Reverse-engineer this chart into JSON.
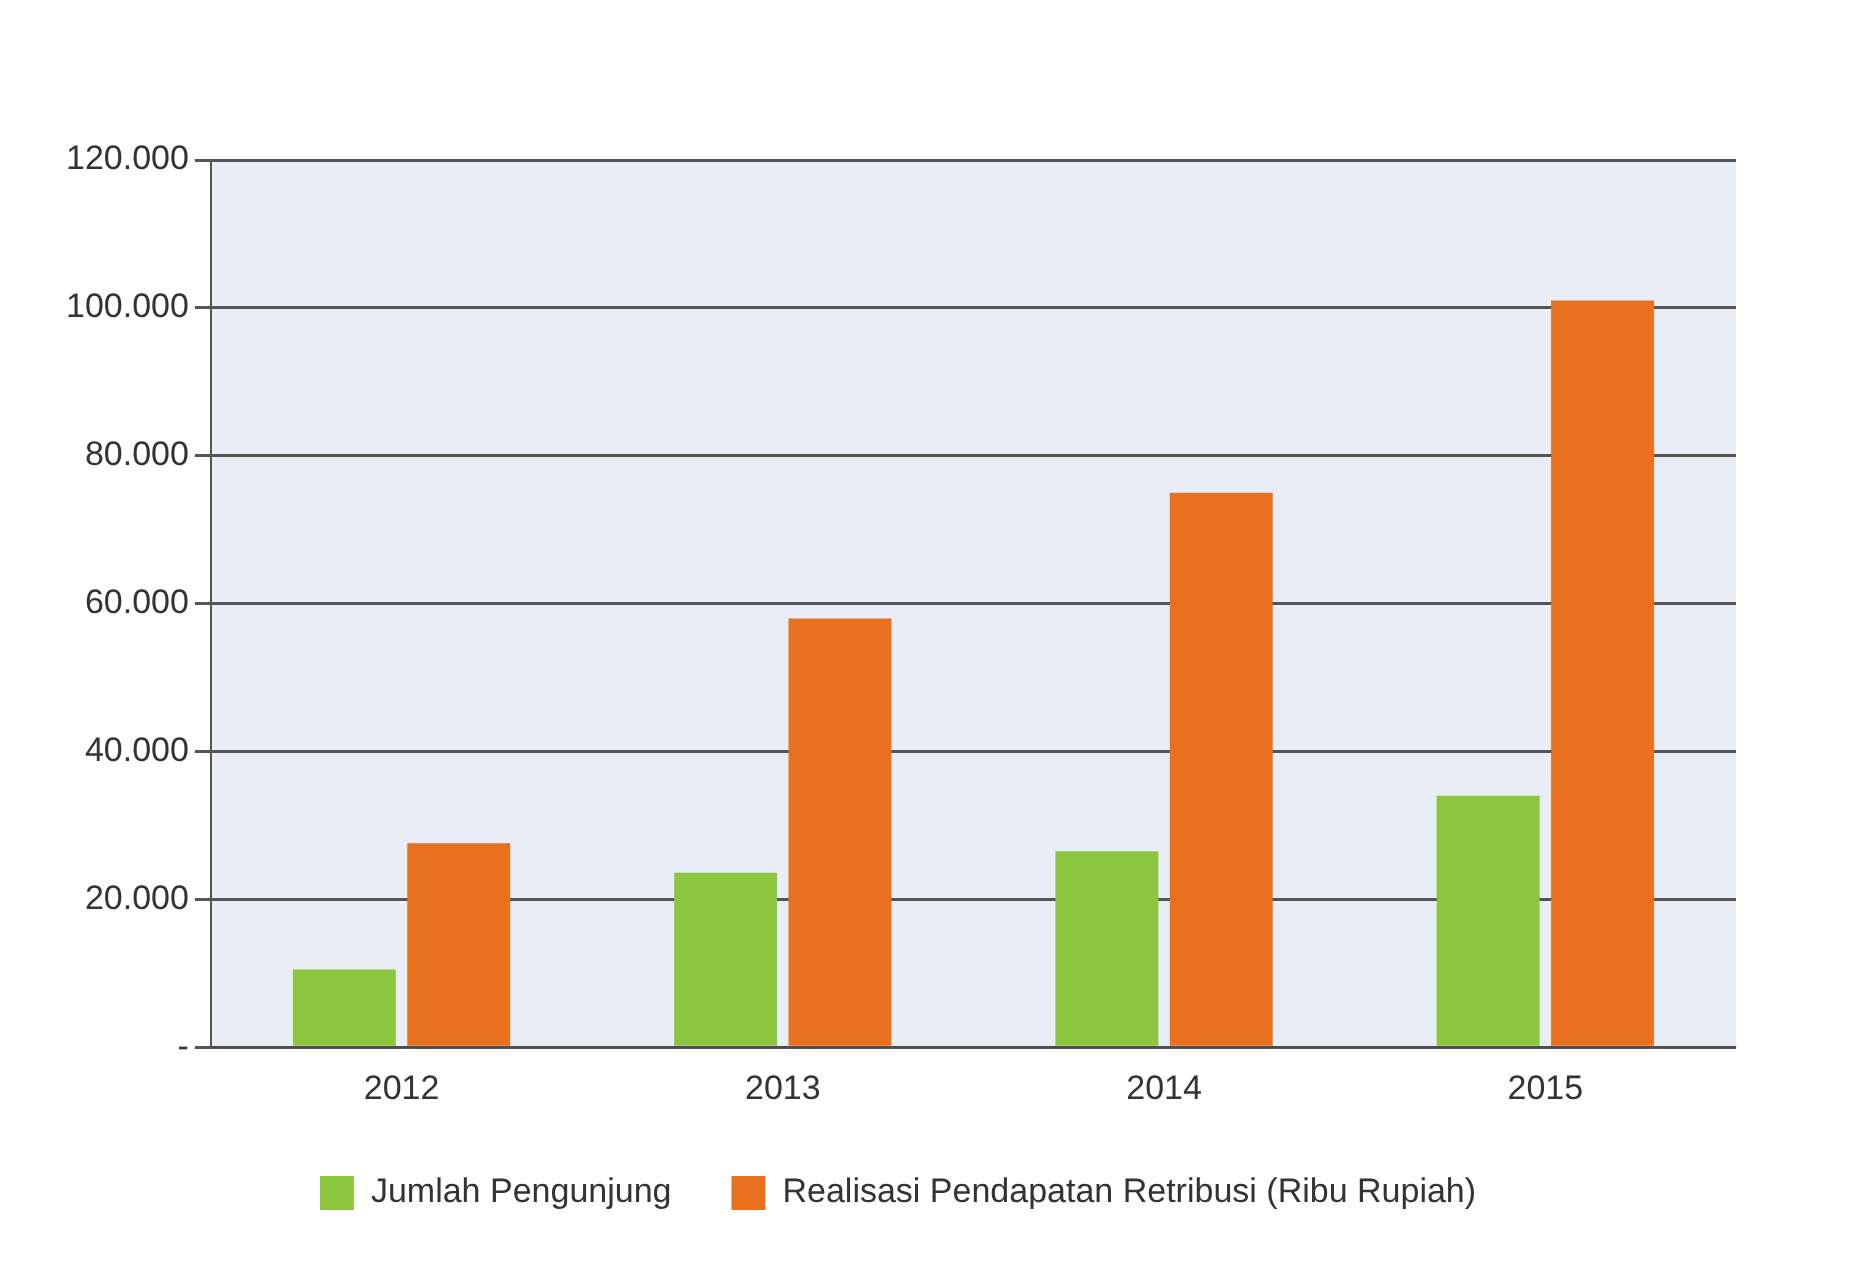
{
  "chart_data": {
    "type": "bar",
    "categories": [
      "2012",
      "2013",
      "2014",
      "2015"
    ],
    "series": [
      {
        "name": "Jumlah Pengunjung",
        "color": "#8cc63e",
        "values": [
          10500,
          23600,
          26500,
          34000
        ]
      },
      {
        "name": "Realisasi Pendapatan Retribusi (Ribu Rupiah)",
        "color": "#e8701e",
        "values": [
          27600,
          58000,
          75000,
          101000
        ]
      }
    ],
    "ylim": [
      0,
      120000
    ],
    "yticks": [
      {
        "value": 0,
        "label": "-"
      },
      {
        "value": 20000,
        "label": "20.000"
      },
      {
        "value": 40000,
        "label": "40.000"
      },
      {
        "value": 60000,
        "label": "60.000"
      },
      {
        "value": 80000,
        "label": "80.000"
      },
      {
        "value": 100000,
        "label": "100.000"
      },
      {
        "value": 120000,
        "label": "120.000"
      }
    ],
    "grid": "y",
    "legend": "bottom"
  }
}
